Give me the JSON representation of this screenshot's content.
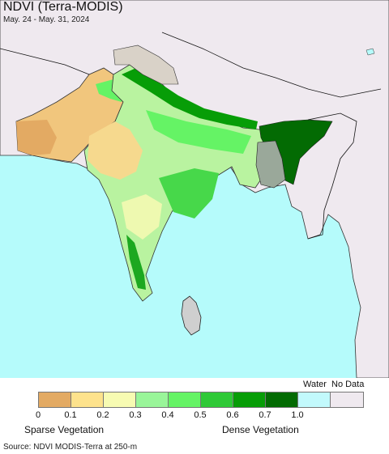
{
  "header": {
    "title": "NDVI (Terra-MODIS)",
    "dates": "May. 24 - May. 31, 2024"
  },
  "legend": {
    "labels": [
      "0",
      "0.1",
      "0.2",
      "0.3",
      "0.4",
      "0.5",
      "0.6",
      "0.7",
      "1.0"
    ],
    "colors": [
      "#e3aa63",
      "#fde28c",
      "#f7fbb2",
      "#99f599",
      "#65f365",
      "#2fc937",
      "#079d07",
      "#036b03",
      "#c2f9fc",
      "#efe9ef"
    ],
    "water_label": "Water",
    "nodata_label": "No Data",
    "sparse_label": "Sparse Vegetation",
    "dense_label": "Dense Vegetation"
  },
  "footer": {
    "source": "Source: NDVI MODIS-Terra at 250-m"
  },
  "map_colors": {
    "ocean": "#b5fbfb",
    "nodata_land": "#efe9ef",
    "border": "#000000"
  }
}
